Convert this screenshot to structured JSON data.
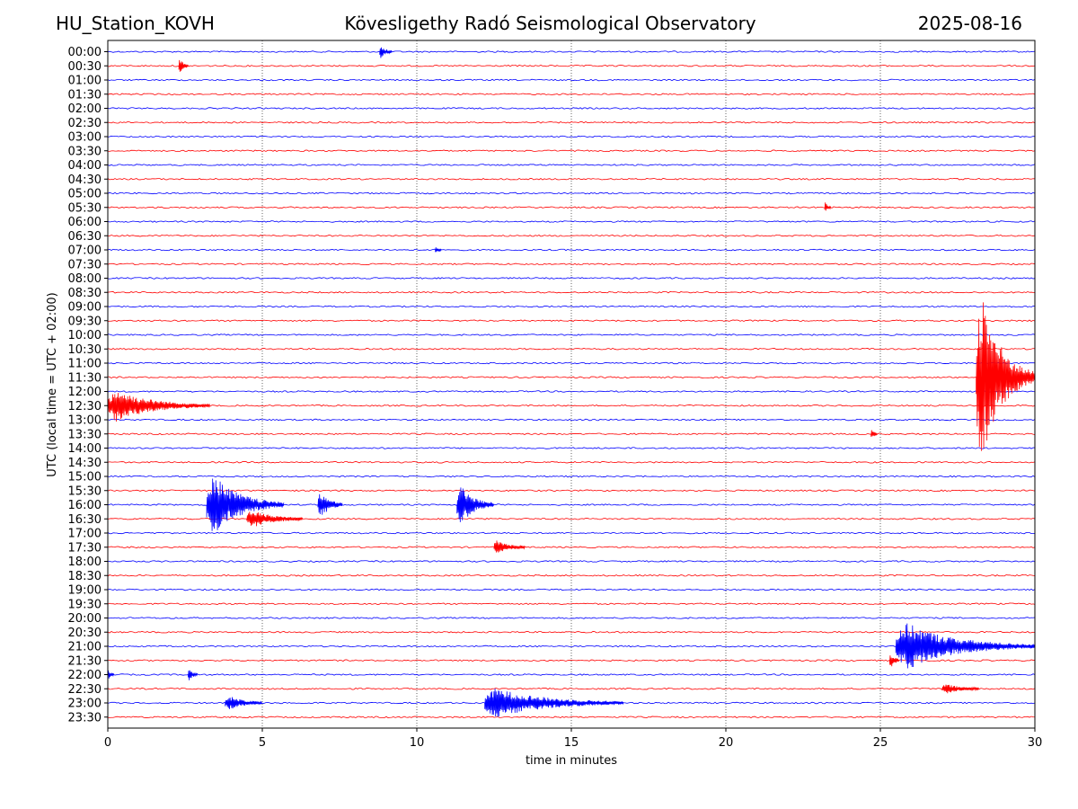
{
  "header": {
    "station": "HU_Station_KOVH",
    "observatory": "Kövesligethy Radó Seismological Observatory",
    "date": "2025-08-16"
  },
  "chart_data": {
    "type": "line",
    "title": "Kövesligethy Radó Seismological Observatory",
    "xlabel": "time in minutes",
    "ylabel": "UTC (local time = UTC + 02:00)",
    "xlim": [
      0,
      30
    ],
    "xticks": [
      0,
      5,
      10,
      15,
      20,
      25,
      30
    ],
    "grid": "vertical dotted at x ticks",
    "colors": {
      "even_rows": "#0000ff",
      "odd_rows": "#ff0000"
    },
    "row_labels": [
      "00:00",
      "00:30",
      "01:00",
      "01:30",
      "02:00",
      "02:30",
      "03:00",
      "03:30",
      "04:00",
      "04:30",
      "05:00",
      "05:30",
      "06:00",
      "06:30",
      "07:00",
      "07:30",
      "08:00",
      "08:30",
      "09:00",
      "09:30",
      "10:00",
      "10:30",
      "11:00",
      "11:30",
      "12:00",
      "12:30",
      "13:00",
      "13:30",
      "14:00",
      "14:30",
      "15:00",
      "15:30",
      "16:00",
      "16:30",
      "17:00",
      "17:30",
      "18:00",
      "18:30",
      "19:00",
      "19:30",
      "20:00",
      "20:30",
      "21:00",
      "21:30",
      "22:00",
      "22:30",
      "23:00",
      "23:30"
    ],
    "events": [
      {
        "row": "00:00",
        "start_min": 8.8,
        "duration_min": 0.4,
        "amplitude_rows": 0.4
      },
      {
        "row": "00:30",
        "start_min": 2.3,
        "duration_min": 0.3,
        "amplitude_rows": 0.5
      },
      {
        "row": "05:30",
        "start_min": 23.2,
        "duration_min": 0.2,
        "amplitude_rows": 0.3
      },
      {
        "row": "07:00",
        "start_min": 10.6,
        "duration_min": 0.2,
        "amplitude_rows": 0.2
      },
      {
        "row": "11:30",
        "start_min": 28.1,
        "duration_min": 1.9,
        "amplitude_rows": 6.5
      },
      {
        "row": "12:30",
        "start_min": 0.0,
        "duration_min": 3.3,
        "amplitude_rows": 1.1
      },
      {
        "row": "13:30",
        "start_min": 24.7,
        "duration_min": 0.2,
        "amplitude_rows": 0.3
      },
      {
        "row": "16:00",
        "start_min": 3.2,
        "duration_min": 2.5,
        "amplitude_rows": 2.2
      },
      {
        "row": "16:00",
        "start_min": 6.8,
        "duration_min": 0.8,
        "amplitude_rows": 1.0
      },
      {
        "row": "16:00",
        "start_min": 11.3,
        "duration_min": 1.2,
        "amplitude_rows": 1.5
      },
      {
        "row": "16:30",
        "start_min": 4.5,
        "duration_min": 1.8,
        "amplitude_rows": 0.6
      },
      {
        "row": "17:30",
        "start_min": 12.5,
        "duration_min": 1.0,
        "amplitude_rows": 0.5
      },
      {
        "row": "21:00",
        "start_min": 25.5,
        "duration_min": 4.5,
        "amplitude_rows": 1.6
      },
      {
        "row": "21:30",
        "start_min": 25.3,
        "duration_min": 0.3,
        "amplitude_rows": 0.6
      },
      {
        "row": "22:00",
        "start_min": 0.0,
        "duration_min": 0.2,
        "amplitude_rows": 0.3
      },
      {
        "row": "22:00",
        "start_min": 2.6,
        "duration_min": 0.3,
        "amplitude_rows": 0.4
      },
      {
        "row": "22:30",
        "start_min": 27.0,
        "duration_min": 1.2,
        "amplitude_rows": 0.3
      },
      {
        "row": "23:00",
        "start_min": 3.8,
        "duration_min": 1.2,
        "amplitude_rows": 0.5
      },
      {
        "row": "23:00",
        "start_min": 12.2,
        "duration_min": 4.5,
        "amplitude_rows": 1.0
      }
    ]
  }
}
